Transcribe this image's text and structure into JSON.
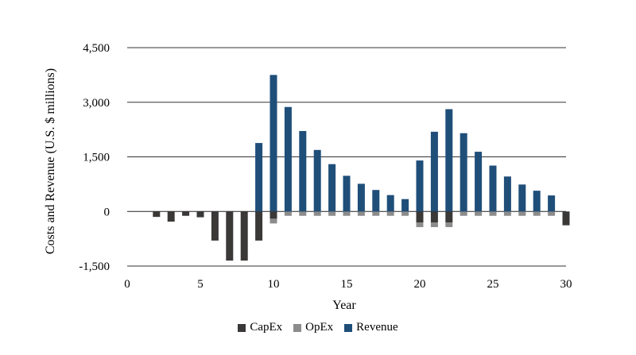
{
  "chart_data": {
    "type": "bar",
    "stacked": true,
    "ylabel": "Costs and Revenue (U.S. $ millions)",
    "xlabel": "Year",
    "ylim": [
      -1500,
      4500
    ],
    "yticks": [
      -1500,
      0,
      1500,
      3000,
      4500
    ],
    "ytick_labels": [
      "-1,500",
      "0",
      "1,500",
      "3,000",
      "4,500"
    ],
    "xlim": [
      0,
      30
    ],
    "xticks": [
      0,
      5,
      10,
      15,
      20,
      25,
      30
    ],
    "xtick_labels": [
      "0",
      "5",
      "10",
      "15",
      "20",
      "25",
      "30"
    ],
    "grid": "horizontal",
    "legend_position": "bottom",
    "x": [
      2,
      3,
      4,
      5,
      6,
      7,
      8,
      9,
      10,
      11,
      12,
      13,
      14,
      15,
      16,
      17,
      18,
      19,
      20,
      21,
      22,
      23,
      24,
      25,
      26,
      27,
      28,
      29,
      30
    ],
    "series": [
      {
        "name": "CapEx",
        "color": "#3b3838",
        "values": [
          -150,
          -280,
          -120,
          -160,
          -800,
          -1350,
          -1350,
          -800,
          -200,
          0,
          0,
          0,
          0,
          0,
          0,
          0,
          0,
          0,
          -300,
          -300,
          -300,
          0,
          0,
          0,
          0,
          0,
          0,
          0,
          -380
        ]
      },
      {
        "name": "OpEx",
        "color": "#8c8c8c",
        "values": [
          0,
          0,
          0,
          0,
          0,
          0,
          0,
          0,
          -130,
          -120,
          -120,
          -120,
          -120,
          -120,
          -120,
          -120,
          -120,
          -120,
          -130,
          -130,
          -130,
          -120,
          -120,
          -120,
          -120,
          -120,
          -120,
          -120,
          0
        ]
      },
      {
        "name": "Revenue",
        "color": "#1f4e79",
        "values": [
          0,
          0,
          0,
          0,
          0,
          0,
          0,
          1880,
          3750,
          2870,
          2210,
          1690,
          1300,
          980,
          760,
          590,
          450,
          340,
          1400,
          2190,
          2810,
          2150,
          1640,
          1260,
          960,
          740,
          570,
          440,
          0
        ]
      }
    ]
  }
}
